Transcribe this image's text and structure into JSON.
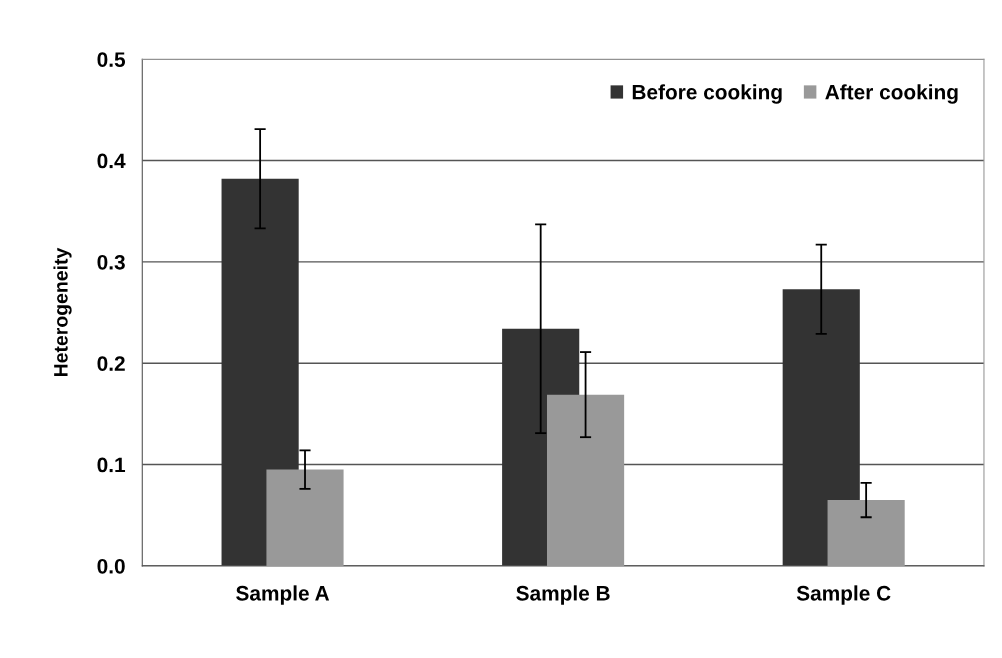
{
  "chart_data": {
    "type": "bar",
    "ylabel": "Heterogeneity",
    "categories": [
      "Sample A",
      "Sample B",
      "Sample C"
    ],
    "series": [
      {
        "name": "Before cooking",
        "color": "#333333",
        "values": [
          0.382,
          0.234,
          0.273
        ],
        "errors": [
          0.049,
          0.103,
          0.044
        ]
      },
      {
        "name": "After cooking",
        "color": "#999999",
        "values": [
          0.095,
          0.169,
          0.065
        ],
        "errors": [
          0.019,
          0.042,
          0.017
        ]
      }
    ],
    "ylim": [
      0,
      0.5
    ],
    "yticks": [
      {
        "value": 0,
        "label": "0.0"
      },
      {
        "value": 0.1,
        "label": "0.1"
      },
      {
        "value": 0.2,
        "label": "0.2"
      },
      {
        "value": 0.3,
        "label": "0.3"
      },
      {
        "value": 0.4,
        "label": "0.4"
      },
      {
        "value": 0.5,
        "label": "0.5"
      }
    ],
    "grid": "y",
    "legend": "top right"
  }
}
